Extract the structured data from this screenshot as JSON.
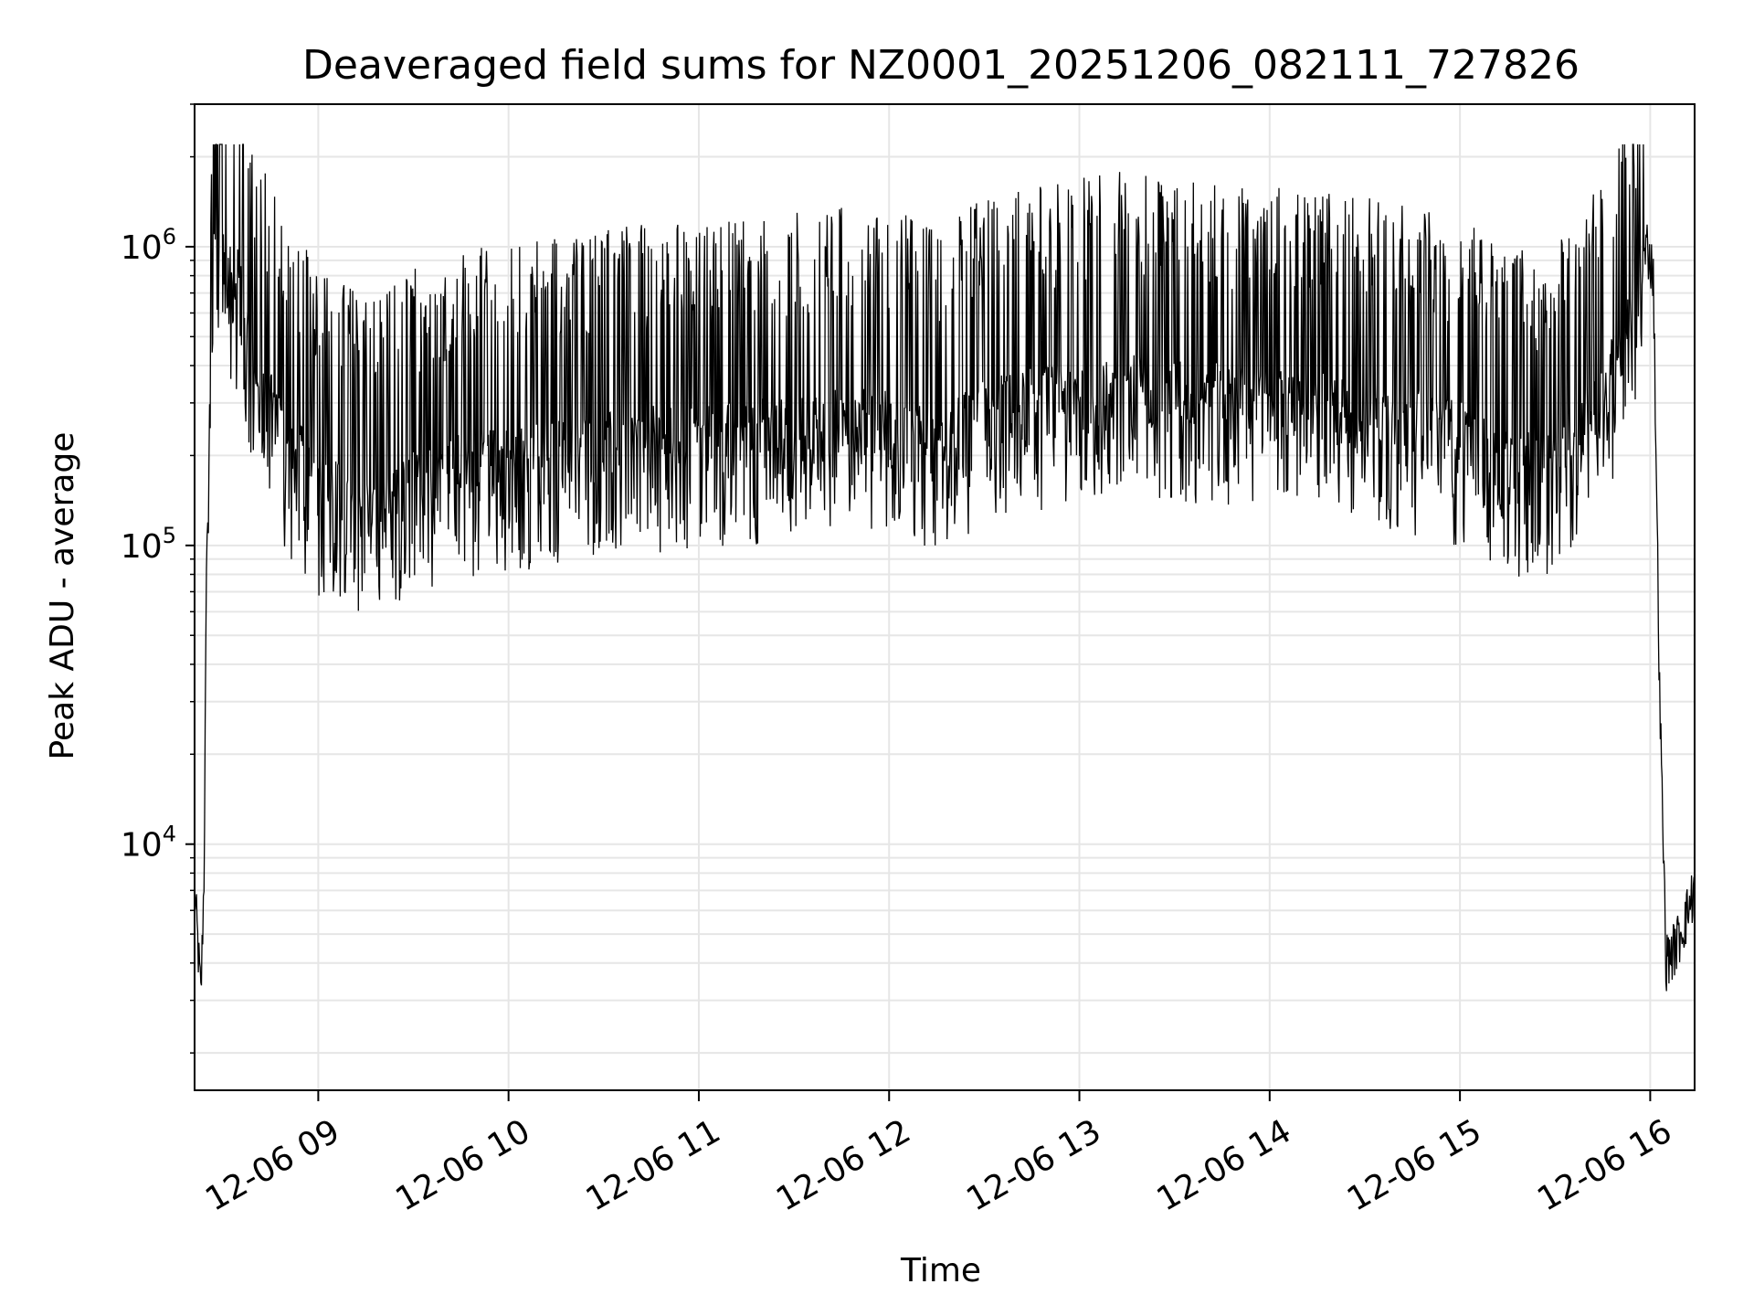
{
  "chart_data": {
    "type": "line",
    "title": "Deaveraged field sums for NZ0001_20251206_082111_727826",
    "xlabel": "Time",
    "ylabel": "Peak ADU - average",
    "yscale": "log",
    "ylim": [
      1500,
      3000000
    ],
    "xlim": [
      "12-06 08:21",
      "12-06 16:14"
    ],
    "grid": true,
    "line_color": "#000000",
    "grid_color": "#e6e6e6",
    "x_ticks": [
      "12-06 09",
      "12-06 10",
      "12-06 11",
      "12-06 12",
      "12-06 13",
      "12-06 14",
      "12-06 15",
      "12-06 16"
    ],
    "y_ticks": [
      {
        "value": 10000,
        "base": "10",
        "exp": "4"
      },
      {
        "value": 100000,
        "base": "10",
        "exp": "5"
      },
      {
        "value": 1000000,
        "base": "10",
        "exp": "6"
      }
    ],
    "series": [
      {
        "x": [
          "12-06 08:21",
          "12-06 08:23",
          "12-06 08:24",
          "12-06 08:25",
          "12-06 08:27",
          "12-06 08:30",
          "12-06 08:33",
          "12-06 08:35",
          "12-06 08:38",
          "12-06 08:41",
          "12-06 08:45",
          "12-06 08:50",
          "12-06 08:55",
          "12-06 09:00",
          "12-06 09:10",
          "12-06 09:20",
          "12-06 09:30",
          "12-06 09:45",
          "12-06 10:00",
          "12-06 10:15",
          "12-06 10:30",
          "12-06 10:45",
          "12-06 11:00",
          "12-06 11:15",
          "12-06 11:30",
          "12-06 11:45",
          "12-06 12:00",
          "12-06 12:15",
          "12-06 12:30",
          "12-06 12:45",
          "12-06 13:00",
          "12-06 13:15",
          "12-06 13:30",
          "12-06 13:45",
          "12-06 14:00",
          "12-06 14:15",
          "12-06 14:30",
          "12-06 14:45",
          "12-06 15:00",
          "12-06 15:15",
          "12-06 15:30",
          "12-06 15:45",
          "12-06 15:55",
          "12-06 15:59",
          "12-06 16:01",
          "12-06 16:03",
          "12-06 16:05",
          "12-06 16:08",
          "12-06 16:11",
          "12-06 16:14"
        ],
        "y": [
          7000,
          3000,
          8000,
          150000,
          850000,
          950000,
          650000,
          800000,
          450000,
          350000,
          300000,
          200000,
          180000,
          150000,
          130000,
          120000,
          150000,
          170000,
          180000,
          190000,
          200000,
          210000,
          210000,
          220000,
          230000,
          240000,
          240000,
          200000,
          260000,
          280000,
          300000,
          320000,
          300000,
          290000,
          280000,
          270000,
          260000,
          240000,
          220000,
          170000,
          180000,
          300000,
          550000,
          1000000,
          800000,
          30000,
          4000,
          4500,
          5500,
          7000
        ]
      }
    ]
  }
}
